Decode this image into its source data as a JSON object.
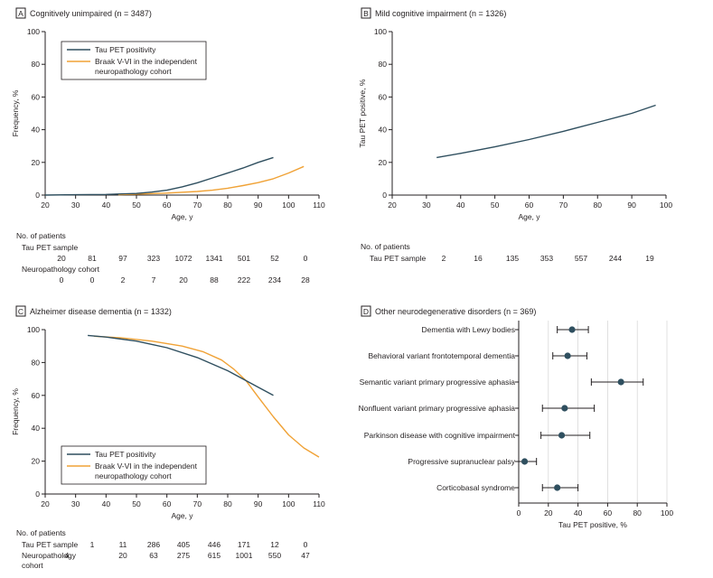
{
  "colors": {
    "navy": "#2f4f5f",
    "orange": "#f0a236",
    "axis": "#231f20",
    "grid": "#d9d9d9"
  },
  "panels": {
    "A": {
      "letter": "A",
      "title": "Cognitively unimpaired (n = 3487)",
      "legend": [
        "Tau PET positivity",
        "Braak V-VI in the independent",
        "neuropathology cohort"
      ],
      "table_title": "No. of patients",
      "rows": [
        {
          "label": "Tau PET sample",
          "values": [
            "20",
            "81",
            "97",
            "323",
            "1072",
            "1341",
            "501",
            "52",
            "0"
          ]
        },
        {
          "label": "Neuropathology cohort",
          "values": [
            "0",
            "0",
            "2",
            "7",
            "20",
            "88",
            "222",
            "234",
            "28"
          ]
        }
      ]
    },
    "B": {
      "letter": "B",
      "title": "Mild cognitive impairment (n = 1326)",
      "table_title": "No. of patients",
      "rows": [
        {
          "label": "Tau PET sample",
          "values": [
            "2",
            "16",
            "135",
            "353",
            "557",
            "244",
            "19"
          ]
        }
      ]
    },
    "C": {
      "letter": "C",
      "title": "Alzheimer disease dementia (n = 1332)",
      "legend": [
        "Tau PET positivity",
        "Braak V-VI in the independent",
        "neuropathology cohort"
      ],
      "table_title": "No. of patients",
      "rows": [
        {
          "label": "Tau PET sample",
          "values": [
            "1",
            "11",
            "286",
            "405",
            "446",
            "171",
            "12",
            "0"
          ]
        },
        {
          "label": "Neuropathology",
          "label2": "cohort",
          "values": [
            "4",
            "20",
            "63",
            "275",
            "615",
            "1001",
            "550",
            "47"
          ]
        }
      ]
    },
    "D": {
      "letter": "D",
      "title": "Other neurodegenerative disorders (n = 369)"
    }
  },
  "chart_data": [
    {
      "panel": "A",
      "type": "line",
      "xlabel": "Age, y",
      "ylabel": "Frequency, %",
      "xlim": [
        20,
        110
      ],
      "ylim": [
        0,
        100
      ],
      "xticks": [
        20,
        30,
        40,
        50,
        60,
        70,
        80,
        90,
        100,
        110
      ],
      "yticks": [
        0,
        20,
        40,
        60,
        80,
        100
      ],
      "series": [
        {
          "name": "Tau PET positivity",
          "color": "#2f4f5f",
          "x": [
            20,
            30,
            40,
            50,
            55,
            60,
            65,
            70,
            75,
            80,
            85,
            90,
            95
          ],
          "y": [
            0,
            0.2,
            0.4,
            1,
            1.8,
            3,
            5,
            7.5,
            10.5,
            13.5,
            16.5,
            20,
            23
          ]
        },
        {
          "name": "Braak V-VI in the independent neuropathology cohort",
          "color": "#f0a236",
          "x": [
            44,
            50,
            60,
            70,
            75,
            80,
            85,
            90,
            95,
            100,
            105
          ],
          "y": [
            0.3,
            0.6,
            1.2,
            2.2,
            3,
            4.2,
            5.8,
            7.6,
            10,
            13.5,
            17.5
          ]
        }
      ]
    },
    {
      "panel": "B",
      "type": "line",
      "xlabel": "Age, y",
      "ylabel": "Tau PET positive, %",
      "xlim": [
        20,
        100
      ],
      "ylim": [
        0,
        100
      ],
      "xticks": [
        20,
        30,
        40,
        50,
        60,
        70,
        80,
        90,
        100
      ],
      "yticks": [
        0,
        20,
        40,
        60,
        80,
        100
      ],
      "series": [
        {
          "name": "",
          "color": "#2f4f5f",
          "x": [
            33,
            40,
            50,
            60,
            70,
            80,
            90,
            97
          ],
          "y": [
            23,
            25.5,
            29.5,
            34,
            39,
            44.5,
            50,
            55
          ]
        }
      ]
    },
    {
      "panel": "C",
      "type": "line",
      "xlabel": "Age, y",
      "ylabel": "Frequency, %",
      "xlim": [
        20,
        110
      ],
      "ylim": [
        0,
        100
      ],
      "xticks": [
        20,
        30,
        40,
        50,
        60,
        70,
        80,
        90,
        100,
        110
      ],
      "yticks": [
        0,
        20,
        40,
        60,
        80,
        100
      ],
      "series": [
        {
          "name": "Tau PET positivity",
          "color": "#2f4f5f",
          "x": [
            34,
            40,
            50,
            60,
            70,
            80,
            90,
            95
          ],
          "y": [
            96.5,
            95.5,
            93,
            89,
            83,
            75,
            65,
            60
          ]
        },
        {
          "name": "Braak V-VI in the independent neuropathology cohort",
          "color": "#f0a236",
          "x": [
            36,
            45,
            55,
            65,
            72,
            78,
            82,
            86,
            90,
            95,
            100,
            105,
            110
          ],
          "y": [
            96,
            95,
            93,
            90,
            86.5,
            81.5,
            76,
            69,
            59,
            47,
            36,
            28,
            22.5
          ]
        }
      ]
    },
    {
      "panel": "D",
      "type": "scatter",
      "xlabel": "Tau PET positive, %",
      "xlim": [
        0,
        100
      ],
      "xticks": [
        0,
        20,
        40,
        60,
        80,
        100
      ],
      "grid": true,
      "categories": [
        "Dementia with Lewy bodies",
        "Behavioral variant frontotemporal dementia",
        "Semantic variant primary progressive aphasia",
        "Nonfluent variant primary progressive aphasia",
        "Parkinson disease with cognitive impairment",
        "Progressive supranuclear palsy",
        "Corticobasal syndrome"
      ],
      "values": [
        36,
        33,
        69,
        31,
        29,
        4,
        26
      ],
      "ci_low": [
        26,
        23,
        49,
        16,
        15,
        0,
        16
      ],
      "ci_high": [
        47,
        46,
        84,
        51,
        48,
        12,
        40
      ]
    }
  ]
}
